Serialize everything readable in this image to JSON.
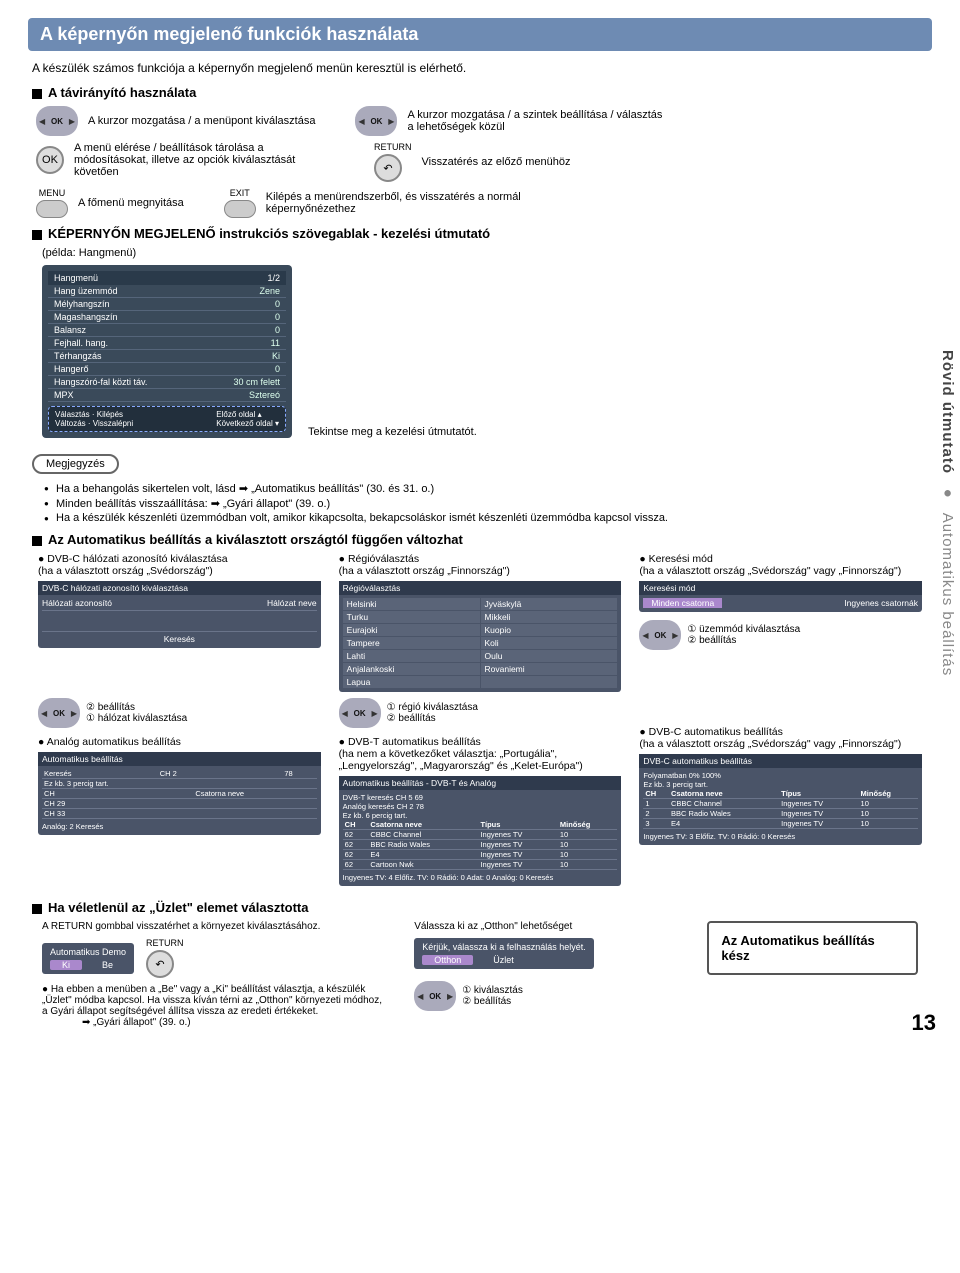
{
  "title": "A képernyőn megjelenő funkciók használata",
  "subtitle": "A készülék számos funkciója a képernyőn megjelenő menün keresztül is elérhető.",
  "sec_remote": "A távirányító használata",
  "remote_ok": "OK",
  "rem1": "A kurzor mozgatása / a menüpont kiválasztása",
  "rem2": "A kurzor mozgatása / a szintek beállítása / választás a lehetőségek közül",
  "rem3": "A menü elérése / beállítások tárolása a módosításokat, illetve az opciók kiválasztását követően",
  "rem4_label": "RETURN",
  "rem4": "Visszatérés az előző menühöz",
  "rem5_label": "MENU",
  "rem5": "A főmenü megnyitása",
  "rem6_label": "EXIT",
  "rem6": "Kilépés a menürendszerből, és visszatérés a normál képernyőnézethez",
  "sec_osd": "KÉPERNYŐN MEGJELENŐ instrukciós szövegablak - kezelési útmutató",
  "osd_example": "(példa: Hangmenü)",
  "osd": {
    "title": "Hangmenü",
    "page": "1/2",
    "rows": [
      [
        "Hang üzemmód",
        "Zene"
      ],
      [
        "Mélyhangszín",
        "0"
      ],
      [
        "Magashangszín",
        "0"
      ],
      [
        "Balansz",
        "0"
      ],
      [
        "Fejhall. hang.",
        "11"
      ],
      [
        "Térhangzás",
        "Ki"
      ],
      [
        "Hangerő",
        "0"
      ],
      [
        "Hangszóró-fal közti táv.",
        "30 cm felett"
      ],
      [
        "MPX",
        "Sztereó"
      ]
    ],
    "foot": {
      "l1": "Választás",
      "l2": "Kilépés",
      "l3": "Változás",
      "l4": "Visszalépni",
      "r1": "Előző oldal",
      "r2": "Következő oldal"
    }
  },
  "osd_tip": "Tekintse meg a kezelési útmutatót.",
  "note_label": "Megjegyzés",
  "notes": [
    "Ha a behangolás sikertelen volt, lásd ➡ „Automatikus beállítás\" (30. és 31. o.)",
    "Minden beállítás visszaállítása: ➡ „Gyári állapot\" (39. o.)",
    "Ha a készülék készenléti üzemmódban volt, amikor kikapcsolta, bekapcsoláskor ismét készenléti üzemmódba kapcsol vissza."
  ],
  "sec_auto": "Az Automatikus beállítás a kiválasztott országtól függően változhat",
  "col1_head": "DVB-C hálózati azonosító kiválasztása",
  "col1_sub": "ha a választott ország „Svédország\"",
  "col1_panel": "DVB-C hálózati azonosító kiválasztása",
  "col1_panel_rows": [
    "Hálózati azonosító",
    "Hálózat neve"
  ],
  "col1_panel_foot": "Keresés",
  "col2_head": "Régióválasztás",
  "col2_sub": "ha a választott ország „Finnország\"",
  "col2_panel": "Régióválasztás",
  "regions": [
    [
      "Helsinki",
      "Jyväskylä"
    ],
    [
      "Turku",
      "Mikkeli"
    ],
    [
      "Eurajoki",
      "Kuopio"
    ],
    [
      "Tampere",
      "Koli"
    ],
    [
      "Lahti",
      "Oulu"
    ],
    [
      "Anjalankoski",
      "Rovaniemi"
    ],
    [
      "Lapua",
      ""
    ]
  ],
  "col3_head": "Keresési mód",
  "col3_sub": "ha a választott ország „Svédország\" vagy „Finnország\"",
  "col3_panel": "Keresési mód",
  "col3_opts": [
    "Minden csatorna",
    "Ingyenes csatornák"
  ],
  "step_mode": "① üzemmód kiválasztása",
  "step_set": "② beállítás",
  "step_net": "① hálózat kiválasztása",
  "step_region": "① régió kiválasztása",
  "auto_analog": "Analóg automatikus beállítás",
  "auto_dvbt": "DVB-T automatikus beállítás",
  "auto_dvbt_sub": "ha nem a következőket választja: „Portugália\", „Lengyelország\", „Magyarország\" és „Kelet-Európa\"",
  "auto_dvbc": "DVB-C automatikus beállítás",
  "auto_dvbc_sub": "ha a választott ország „Svédország\" vagy „Finnország\"",
  "scan_analog": {
    "title": "Automatikus beállítás",
    "rows": [
      [
        "Keresés",
        "CH 2",
        "",
        "78",
        "",
        ""
      ],
      [
        "Ez kb. 3 percig tart.",
        "",
        "",
        "",
        "",
        ""
      ],
      [
        "CH",
        "",
        "Csatorna neve",
        "",
        "",
        ""
      ],
      [
        "CH 29",
        "",
        "",
        "",
        "",
        ""
      ],
      [
        "CH 33",
        "",
        "",
        "",
        "",
        ""
      ]
    ],
    "foot": "Analóg: 2        Keresés"
  },
  "scan_dvbt": {
    "title": "Automatikus beállítás - DVB-T és Analóg",
    "sub1": "DVB-T keresés     CH 5                69",
    "sub2": "Analóg keresés    CH 2        78        ",
    "sub3": "Ez kb. 6 percig tart.",
    "cols": [
      "CH",
      "Csatorna neve",
      "Típus",
      "Minőség"
    ],
    "rows": [
      [
        "62",
        "CBBC Channel",
        "Ingyenes TV",
        "10"
      ],
      [
        "62",
        "BBC Radio Wales",
        "Ingyenes TV",
        "10"
      ],
      [
        "62",
        "E4",
        "Ingyenes TV",
        "10"
      ],
      [
        "62",
        "Cartoon Nwk",
        "Ingyenes TV",
        "10"
      ]
    ],
    "foot": "Ingyenes TV: 4   Előfiz. TV: 0   Rádió: 0   Adat: 0   Analóg: 0        Keresés"
  },
  "scan_dvbc": {
    "title": "DVB-C automatikus beállítás",
    "sub1": "Folyamatban        0%                 100%",
    "sub2": "Ez kb. 3 percig tart.",
    "cols": [
      "CH",
      "Csatorna neve",
      "Típus",
      "Minőség"
    ],
    "rows": [
      [
        "1",
        "CBBC Channel",
        "Ingyenes TV",
        "10"
      ],
      [
        "2",
        "BBC Radio Wales",
        "Ingyenes TV",
        "10"
      ],
      [
        "3",
        "E4",
        "Ingyenes TV",
        "10"
      ]
    ],
    "foot": "Ingyenes TV: 3   Előfiz. TV: 0   Rádió: 0        Keresés"
  },
  "sec_shop": "Ha véletlenül az „Üzlet\" elemet választotta",
  "shop_txt1": "A RETURN gombbal visszatérhet a környezet kiválasztásához.",
  "shop_panel": "Automatikus Demo",
  "shop_opts": [
    "Ki",
    "Be"
  ],
  "shop_txt2": "Ha ebben a menüben a „Be\" vagy a „Ki\" beállítást választja, a készülék „Üzlet\" módba kapcsol. Ha vissza kíván térni az „Otthon\" környezeti módhoz, a Gyári állapot segítségével állítsa vissza az eredeti értékeket.",
  "shop_txt3": "➡ „Gyári állapot\" (39. o.)",
  "home_txt": "Válassza ki az „Otthon\" lehetőséget",
  "home_panel": "Kérjük, válassza ki a felhasználás helyét.",
  "home_opts": [
    "Otthon",
    "Üzlet"
  ],
  "home_step1": "① kiválasztás",
  "home_step2": "② beállítás",
  "done_box": "Az Automatikus beállítás kész",
  "side1": "Rövid útmutató",
  "side2": "Automatikus beállítás",
  "pagenum": "13"
}
